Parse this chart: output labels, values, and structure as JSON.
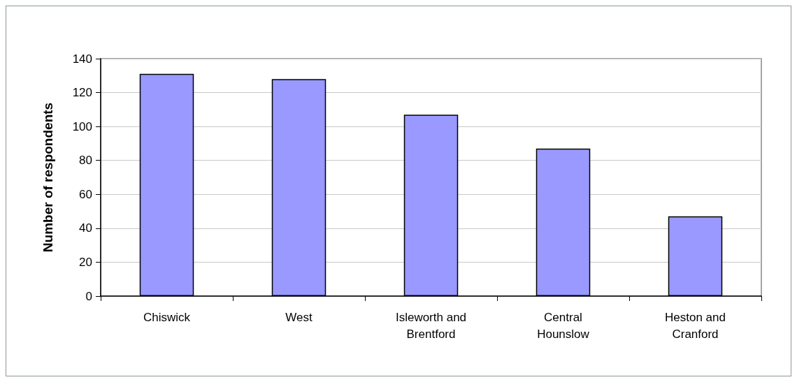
{
  "chart_data": {
    "type": "bar",
    "ylabel": "Number of respondents",
    "categories": [
      "Chiswick",
      "West",
      "Isleworth and\nBrentford",
      "Central\nHounslow",
      "Heston and\nCranford"
    ],
    "values": [
      131,
      128,
      107,
      87,
      47
    ],
    "color": "#9999ff",
    "ylim": [
      0,
      140
    ],
    "yticks": [
      0,
      20,
      40,
      60,
      80,
      100,
      120,
      140
    ],
    "grid": "y"
  }
}
